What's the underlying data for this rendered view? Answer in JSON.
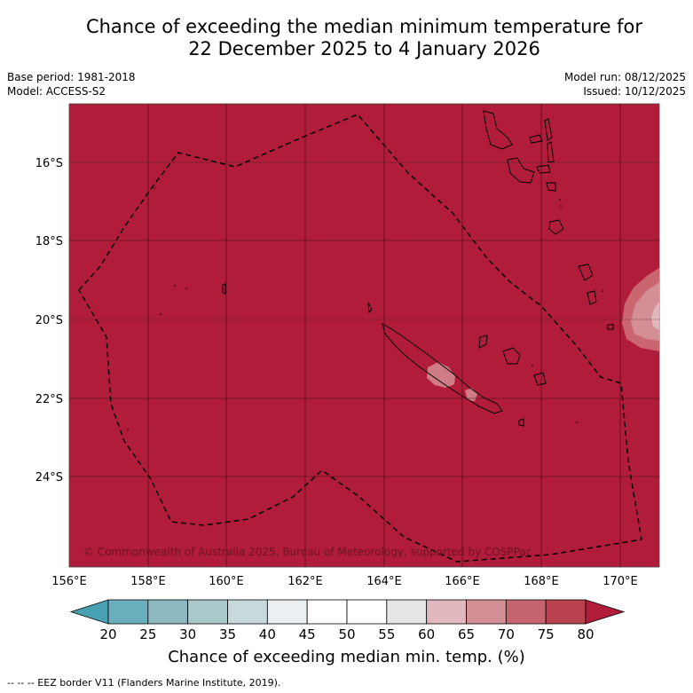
{
  "title": {
    "line1": "Chance of exceeding the median minimum temperature for",
    "line2": "22 December 2025 to 4 January 2026"
  },
  "meta": {
    "base_period": "Base period: 1981-2018",
    "model": "Model: ACCESS-S2",
    "model_run": "Model run: 08/12/2025",
    "issued": "Issued: 10/12/2025"
  },
  "map": {
    "lat_labels": [
      "16°S",
      "18°S",
      "20°S",
      "22°S",
      "24°S"
    ],
    "lon_labels": [
      "156°E",
      "158°E",
      "160°E",
      "162°E",
      "164°E",
      "166°E",
      "168°E",
      "170°E"
    ],
    "copyright": "© Commonwealth of Australia 2025, Bureau of Meteorology, supported by COSPPac",
    "background_color": "#b11c3a"
  },
  "colorbar": {
    "ticks": [
      "20",
      "25",
      "30",
      "35",
      "40",
      "45",
      "50",
      "55",
      "60",
      "65",
      "70",
      "75",
      "80"
    ],
    "colors": [
      "#48a1b1",
      "#6aafbd",
      "#8db8c2",
      "#a9c8cc",
      "#c8d9dc",
      "#eaf0f1",
      "#ffffff",
      "#ffffff",
      "#e6e6e6",
      "#e0b8bd",
      "#d48e96",
      "#c66470",
      "#b9424f",
      "#b11c3a"
    ],
    "label": "Chance of exceeding median min. temp. (%)"
  },
  "footer": "--  --  -- EEZ border V11 (Flanders Marine Institute, 2019)."
}
